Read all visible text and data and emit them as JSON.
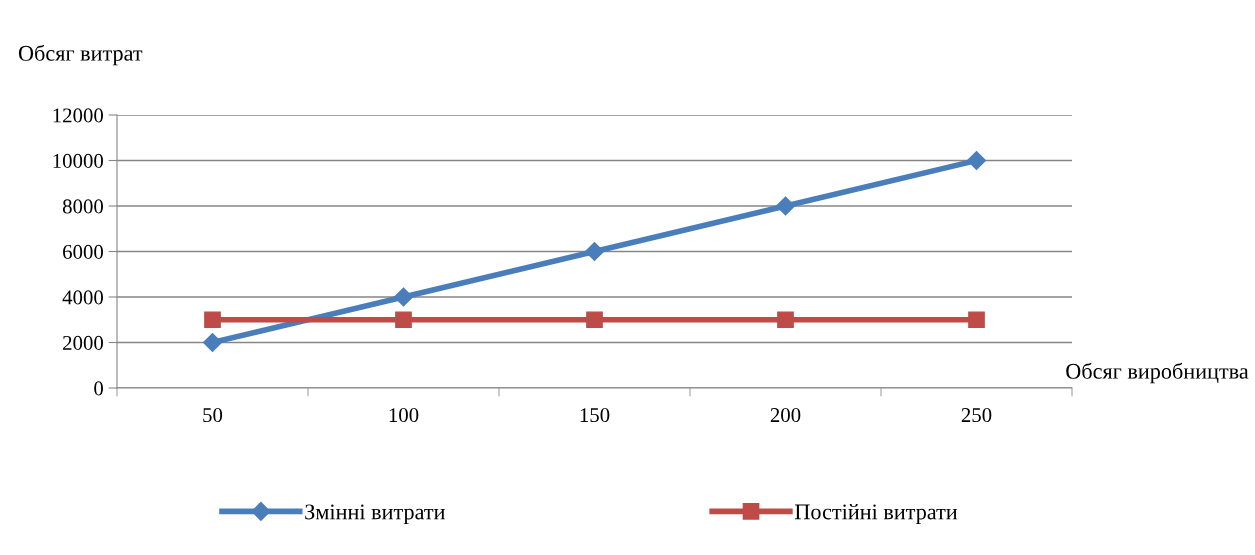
{
  "chart_data": {
    "type": "line",
    "ylabel": "Обсяг витрат",
    "xlabel": "Обсяг виробництва",
    "categories": [
      "50",
      "100",
      "150",
      "200",
      "250"
    ],
    "series": [
      {
        "name": "Змінні витрати",
        "color": "#4a7ebb",
        "marker": "diamond",
        "values": [
          2000,
          4000,
          6000,
          8000,
          10000
        ]
      },
      {
        "name": "Постійні витрати",
        "color": "#be4b48",
        "marker": "square",
        "values": [
          3000,
          3000,
          3000,
          3000,
          3000
        ]
      }
    ],
    "ylim": [
      0,
      12000
    ],
    "yticks": [
      0,
      2000,
      4000,
      6000,
      8000,
      10000,
      12000
    ],
    "grid": "y",
    "legend": "bottom",
    "line_style": "solid"
  }
}
